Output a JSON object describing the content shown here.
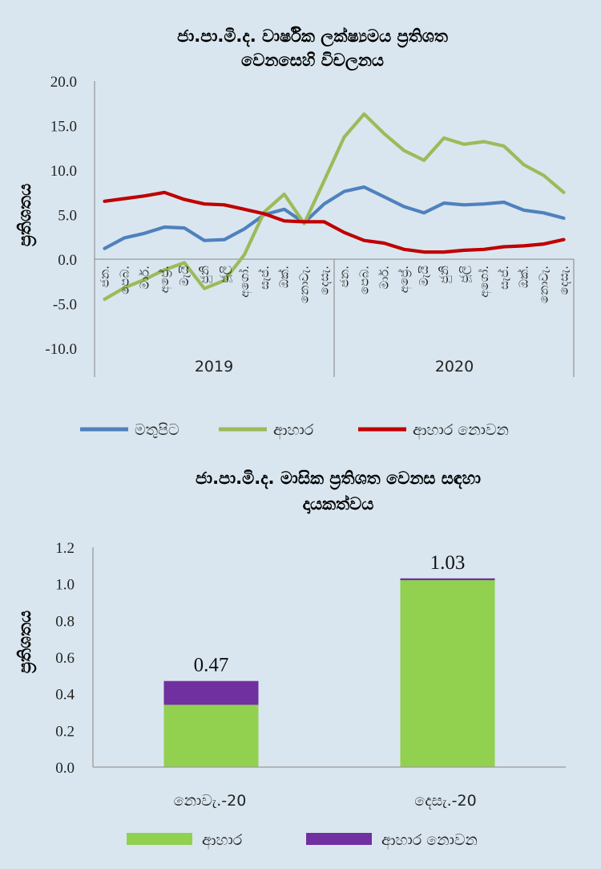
{
  "chart_data": [
    {
      "type": "line",
      "title": [
        "ජා.පා.මි.ද. වාර්ෂික ලක්ෂ්‍යමය ප්‍රතිශත",
        "වෙනසෙහි විචලනය"
      ],
      "ylabel": "ප්‍රතිශතය",
      "ylim": [
        -10,
        20
      ],
      "yticks": [
        "20.0",
        "15.0",
        "10.0",
        "5.0",
        "0.0",
        "-5.0",
        "-10.0"
      ],
      "months": [
        "ජන.",
        "පෙබ.",
        "මාර්.",
        "අප්‍රේ.",
        "මැයි",
        "ජුනි",
        "ජූලි",
        "අගෝ.",
        "සැප්.",
        "ඔක්.",
        "නොවැ.",
        "දෙසැ.",
        "ජන.",
        "පෙබ.",
        "මාර්.",
        "අප්‍රේ.",
        "මැයි",
        "ජුනි",
        "ජූලි",
        "අගෝ.",
        "සැප්.",
        "ඔක්.",
        "නොවැ.",
        "දෙසැ."
      ],
      "years": [
        "2019",
        "2020"
      ],
      "series": [
        {
          "name": "මතුපිට",
          "color": "#4f81bd",
          "values": [
            1.2,
            2.4,
            2.9,
            3.6,
            3.5,
            2.1,
            2.2,
            3.4,
            5.0,
            5.6,
            4.1,
            6.2,
            7.6,
            8.1,
            7.0,
            5.9,
            5.2,
            6.3,
            6.1,
            6.2,
            6.4,
            5.5,
            5.2,
            4.6
          ]
        },
        {
          "name": "ආහාර",
          "color": "#9bbb59",
          "values": [
            -4.5,
            -3.2,
            -2.3,
            -1.2,
            -0.4,
            -3.3,
            -2.4,
            0.5,
            5.3,
            7.3,
            4.0,
            8.8,
            13.7,
            16.3,
            14.1,
            12.2,
            11.1,
            13.6,
            12.9,
            13.2,
            12.7,
            10.6,
            9.4,
            7.5
          ]
        },
        {
          "name": "ආහාර නොවන",
          "color": "#c00000",
          "values": [
            6.5,
            6.8,
            7.1,
            7.5,
            6.7,
            6.2,
            6.1,
            5.6,
            5.1,
            4.3,
            4.2,
            4.2,
            3.0,
            2.1,
            1.8,
            1.1,
            0.8,
            0.8,
            1.0,
            1.1,
            1.4,
            1.5,
            1.7,
            2.2
          ]
        }
      ]
    },
    {
      "type": "bar",
      "stacked": true,
      "title": [
        "ජා.පා.මි.ද. මාසික  ප්‍රතිශත වෙනස සඳහා",
        "දායකත්වය"
      ],
      "ylabel": "ප්‍රතිශතය",
      "ylim": [
        0,
        1.2
      ],
      "yticks": [
        "1.2",
        "1.0",
        "0.8",
        "0.6",
        "0.4",
        "0.2",
        "0.0"
      ],
      "categories": [
        "නොවැ.-20",
        "දෙසැ.-20"
      ],
      "totals": [
        "0.47",
        "1.03"
      ],
      "series": [
        {
          "name": "ආහාර",
          "color": "#92d050",
          "values": [
            0.34,
            1.02
          ]
        },
        {
          "name": "ආහාර නොවන",
          "color": "#7030a0",
          "values": [
            0.13,
            0.01
          ]
        }
      ]
    }
  ]
}
